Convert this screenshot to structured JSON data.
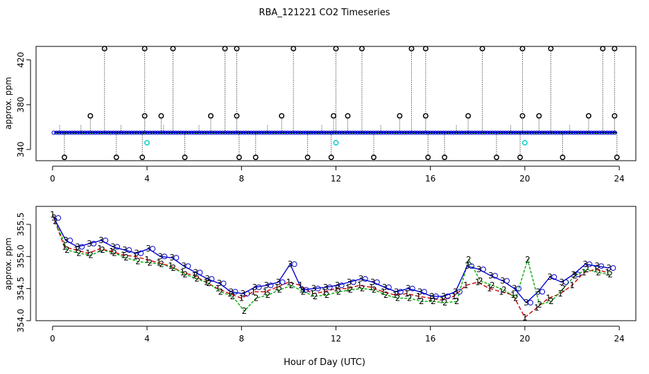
{
  "title": "RBA_121221  CO2 Timeseries",
  "xlabel": "Hour of Day (UTC)",
  "colors": {
    "axis": "#000000",
    "series1": "#cc0000",
    "series2": "#00aa00",
    "series3": "#0000cc",
    "outlier": "#000000",
    "flag": "#00cccc"
  },
  "chart_data": [
    {
      "type": "scatter",
      "panel": "top",
      "ylabel": "approx. ppm",
      "xlim": [
        -0.7,
        24.7
      ],
      "ylim": [
        330,
        432
      ],
      "xticks": [
        0,
        4,
        8,
        12,
        16,
        20,
        24
      ],
      "yticks": [
        340,
        380,
        420
      ],
      "baseline": 355,
      "outliers_high": [
        2.2,
        3.9,
        5.1,
        7.3,
        7.8,
        10.2,
        12.0,
        13.1,
        15.2,
        15.8,
        18.2,
        19.9,
        21.1,
        23.3,
        23.8
      ],
      "outliers_mid": [
        1.6,
        3.9,
        4.6,
        6.7,
        7.8,
        9.7,
        11.9,
        12.5,
        14.7,
        15.8,
        17.6,
        19.9,
        20.6,
        22.7,
        23.8
      ],
      "outliers_low": [
        0.5,
        2.7,
        3.8,
        5.6,
        7.9,
        8.6,
        10.8,
        11.8,
        13.6,
        15.9,
        16.6,
        18.8,
        19.8,
        21.6,
        23.9
      ],
      "flags": [
        4.0,
        12.0,
        20.0
      ]
    },
    {
      "type": "line",
      "panel": "bottom",
      "ylabel": "approx. ppm",
      "xlim": [
        -0.7,
        24.7
      ],
      "ylim": [
        354.0,
        355.78
      ],
      "xticks": [
        0,
        4,
        8,
        12,
        16,
        20,
        24
      ],
      "yticks": [
        354.0,
        354.5,
        355.0,
        355.5
      ],
      "x": [
        0.0,
        0.5,
        1,
        1.5,
        2,
        2.5,
        3,
        3.5,
        4,
        4.5,
        5,
        5.5,
        6,
        6.5,
        7,
        7.5,
        8,
        8.5,
        9,
        9.5,
        10,
        10.5,
        11,
        11.5,
        12,
        12.5,
        13,
        13.5,
        14,
        14.5,
        15,
        15.5,
        16,
        16.5,
        17,
        17.5,
        18,
        18.5,
        19,
        19.5,
        20,
        20.5,
        21,
        21.5,
        22,
        22.5,
        23,
        23.5
      ],
      "series": [
        {
          "name": "1",
          "values": [
            355.65,
            355.15,
            355.1,
            355.05,
            355.12,
            355.08,
            355.02,
            355.0,
            354.95,
            354.9,
            354.85,
            354.75,
            354.7,
            354.6,
            354.5,
            354.42,
            354.35,
            354.45,
            354.45,
            354.52,
            354.6,
            354.55,
            354.42,
            354.45,
            354.5,
            354.5,
            354.55,
            354.52,
            354.45,
            354.4,
            354.42,
            354.38,
            354.35,
            354.32,
            354.38,
            354.55,
            354.6,
            354.5,
            354.45,
            354.4,
            354.05,
            354.2,
            354.35,
            354.42,
            354.55,
            354.75,
            354.8,
            354.75
          ]
        },
        {
          "name": "2",
          "values": [
            355.55,
            355.1,
            355.05,
            355.02,
            355.1,
            355.05,
            354.98,
            354.92,
            354.9,
            354.88,
            354.82,
            354.72,
            354.65,
            354.58,
            354.45,
            354.38,
            354.15,
            354.35,
            354.4,
            354.48,
            354.55,
            354.45,
            354.38,
            354.4,
            354.45,
            354.48,
            354.5,
            354.48,
            354.4,
            354.35,
            354.35,
            354.3,
            354.3,
            354.28,
            354.3,
            354.95,
            354.62,
            354.55,
            354.48,
            354.35,
            354.95,
            354.25,
            354.3,
            354.5,
            354.7,
            354.8,
            354.75,
            354.72
          ]
        },
        {
          "name": "3",
          "values": [
            355.6,
            355.25,
            355.15,
            355.2,
            355.25,
            355.15,
            355.1,
            355.05,
            355.12,
            355.0,
            354.98,
            354.85,
            354.75,
            354.65,
            354.58,
            354.45,
            354.42,
            354.52,
            354.55,
            354.6,
            354.88,
            354.48,
            354.5,
            354.52,
            354.55,
            354.6,
            354.65,
            354.6,
            354.52,
            354.45,
            354.5,
            354.45,
            354.38,
            354.38,
            354.45,
            354.85,
            354.8,
            354.7,
            354.62,
            354.5,
            354.28,
            354.45,
            354.68,
            354.6,
            354.72,
            354.88,
            354.85,
            354.82
          ]
        }
      ]
    }
  ]
}
